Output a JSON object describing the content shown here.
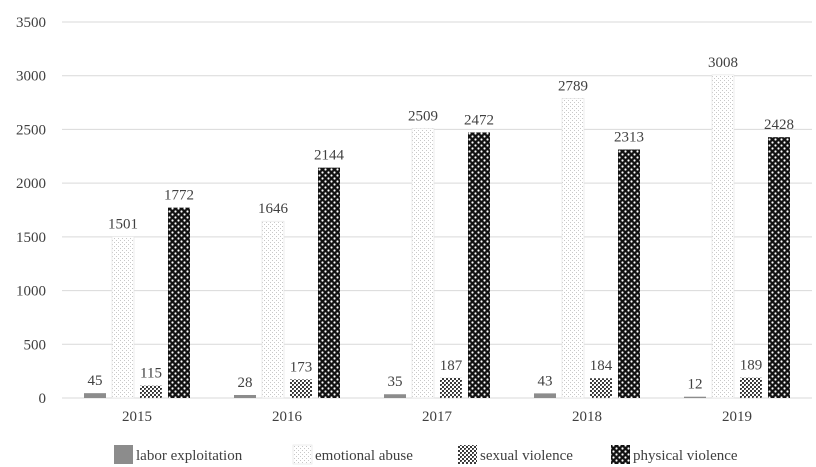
{
  "chart_data": {
    "type": "bar",
    "categories": [
      "2015",
      "2016",
      "2017",
      "2018",
      "2019"
    ],
    "series": [
      {
        "name": "labor exploitation",
        "values": [
          45,
          28,
          35,
          43,
          12
        ]
      },
      {
        "name": "emotional abuse",
        "values": [
          1501,
          1646,
          2509,
          2789,
          3008
        ]
      },
      {
        "name": "sexual violence",
        "values": [
          115,
          173,
          187,
          184,
          189
        ]
      },
      {
        "name": "physical violence",
        "values": [
          1772,
          2144,
          2472,
          2313,
          2428
        ]
      }
    ],
    "yticks": [
      "0",
      "500",
      "1000",
      "1500",
      "2000",
      "2500",
      "3000",
      "3500"
    ],
    "ylim": [
      0,
      3500
    ],
    "grid": true,
    "legend_position": "bottom",
    "colors": {
      "labor_exploitation": "#8c8c8c",
      "emotional_abuse_pattern": "#d9d9d9",
      "sexual_violence_pattern": "#595959",
      "physical_violence_pattern": "#1a1a1a",
      "gridline": "#d9d9d9",
      "text": "#404040"
    }
  }
}
